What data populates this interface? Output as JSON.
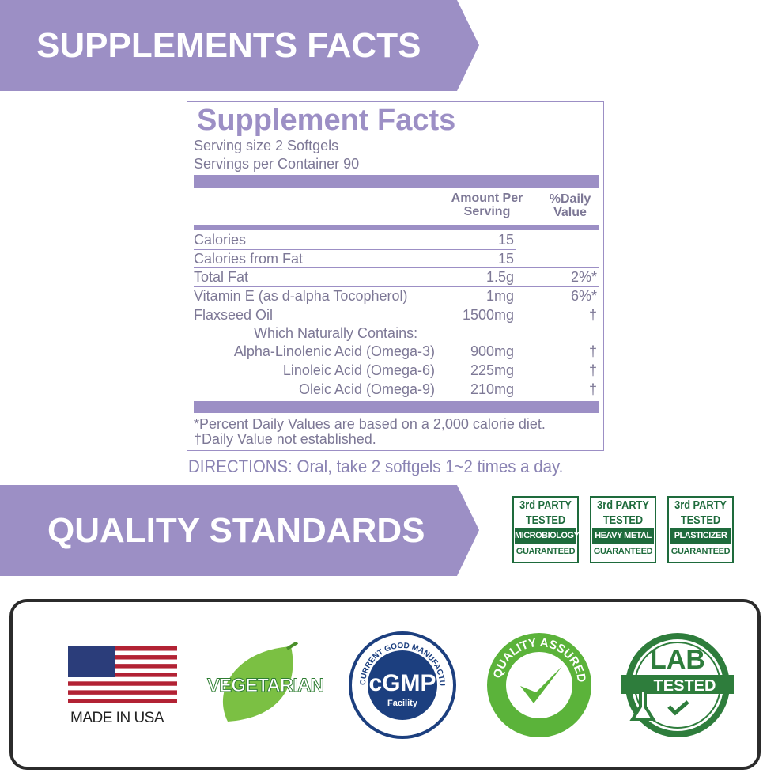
{
  "banners": {
    "supplements": "SUPPLEMENTS FACTS",
    "quality": "QUALITY STANDARDS"
  },
  "facts": {
    "title": "Supplement Facts",
    "serving_size": "Serving size 2 Softgels",
    "servings_per_container": "Servings per Container 90",
    "header_amount": "Amount Per Serving",
    "header_dv": "%Daily Value",
    "rows": [
      {
        "name": "Calories",
        "amount": "15",
        "dv": ""
      },
      {
        "name": "Calories from Fat",
        "amount": "15",
        "dv": ""
      },
      {
        "name": "Total Fat",
        "amount": "1.5g",
        "dv": "2%*"
      },
      {
        "name": "Vitamin E (as d-alpha Tocopherol)",
        "amount": "1mg",
        "dv": "6%*"
      },
      {
        "name": "Flaxseed Oil",
        "amount": "1500mg",
        "dv": "†"
      },
      {
        "name": "Which Naturally Contains:",
        "amount": "",
        "dv": ""
      },
      {
        "name": "Alpha-Linolenic Acid (Omega-3)",
        "amount": "900mg",
        "dv": "†"
      },
      {
        "name": "Linoleic Acid (Omega-6)",
        "amount": "225mg",
        "dv": "†"
      },
      {
        "name": "Oleic Acid (Omega-9)",
        "amount": "210mg",
        "dv": "†"
      }
    ],
    "footnote1": "*Percent Daily Values are based on a 2,000 calorie diet.",
    "footnote2": "†Daily Value not established."
  },
  "directions": "DIRECTIONS: Oral, take 2 softgels 1~2 times a day.",
  "badges": [
    {
      "top": "3rd PARTY",
      "mid": "TESTED",
      "band": "MICROBIOLOGY",
      "bottom": "GUARANTEED"
    },
    {
      "top": "3rd PARTY",
      "mid": "TESTED",
      "band": "HEAVY METAL",
      "bottom": "GUARANTEED"
    },
    {
      "top": "3rd PARTY",
      "mid": "TESTED",
      "band": "PLASTICIZER",
      "bottom": "GUARANTEED"
    }
  ],
  "certifications": {
    "usa": "MADE IN USA",
    "vegetarian": "VEGETARIAN",
    "cgmp": {
      "main": "cGMP",
      "sub": "Facility",
      "ring": "CURRENT GOOD MANUFACTURING REACTICE"
    },
    "quality": "QUALITY ASSURED",
    "lab": {
      "top": "LAB",
      "bottom": "TESTED"
    }
  },
  "colors": {
    "purple": "#9c8fc5",
    "green": "#1e6b3c",
    "navy": "#1c3f7f",
    "lime": "#5bb33a"
  }
}
